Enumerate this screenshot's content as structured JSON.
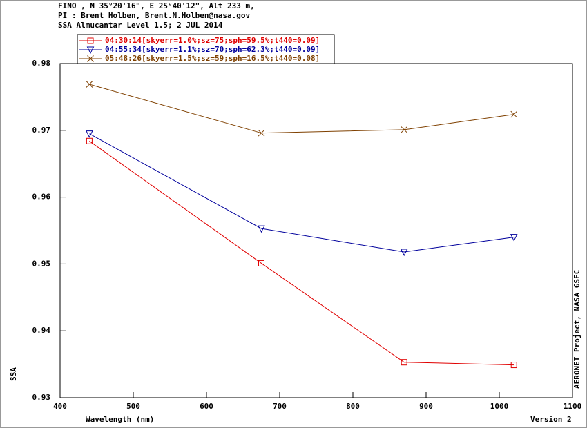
{
  "chart_data": {
    "type": "line",
    "header": [
      "FINO , N 35°20'16\", E 25°40'12\", Alt 233 m,",
      "PI : Brent Holben, Brent.N.Holben@nasa.gov",
      "SSA Almucantar Level 1.5; 2 JUL 2014"
    ],
    "xlabel": "Wavelength (nm)",
    "ylabel": "SSA",
    "right_label": "AERONET Project, NASA GSFC",
    "version": "Version 2",
    "x": [
      440,
      675,
      870,
      1020
    ],
    "series": [
      {
        "name": "04:30:14[skyerr=1.0%;sz=75;sph=59.5%;t440=0.09]",
        "color": "#e00000",
        "marker": "square",
        "values": [
          0.9684,
          0.9501,
          0.9353,
          0.9349
        ]
      },
      {
        "name": "04:55:34[skyerr=1.1%;sz=70;sph=62.3%;t440=0.09]",
        "color": "#00009c",
        "marker": "triangle-down",
        "values": [
          0.9695,
          0.9553,
          0.9518,
          0.954
        ]
      },
      {
        "name": "05:48:26[skyerr=1.5%;sz=59;sph=16.5%;t440=0.08]",
        "color": "#7f4000",
        "marker": "x",
        "values": [
          0.9769,
          0.9696,
          0.9701,
          0.9724
        ]
      }
    ],
    "xlim": [
      400,
      1100
    ],
    "xticks": [
      400,
      500,
      600,
      700,
      800,
      900,
      1000,
      1100
    ],
    "ylim": [
      0.93,
      0.98
    ],
    "yticks": [
      0.93,
      0.94,
      0.95,
      0.96,
      0.97,
      0.98
    ]
  }
}
